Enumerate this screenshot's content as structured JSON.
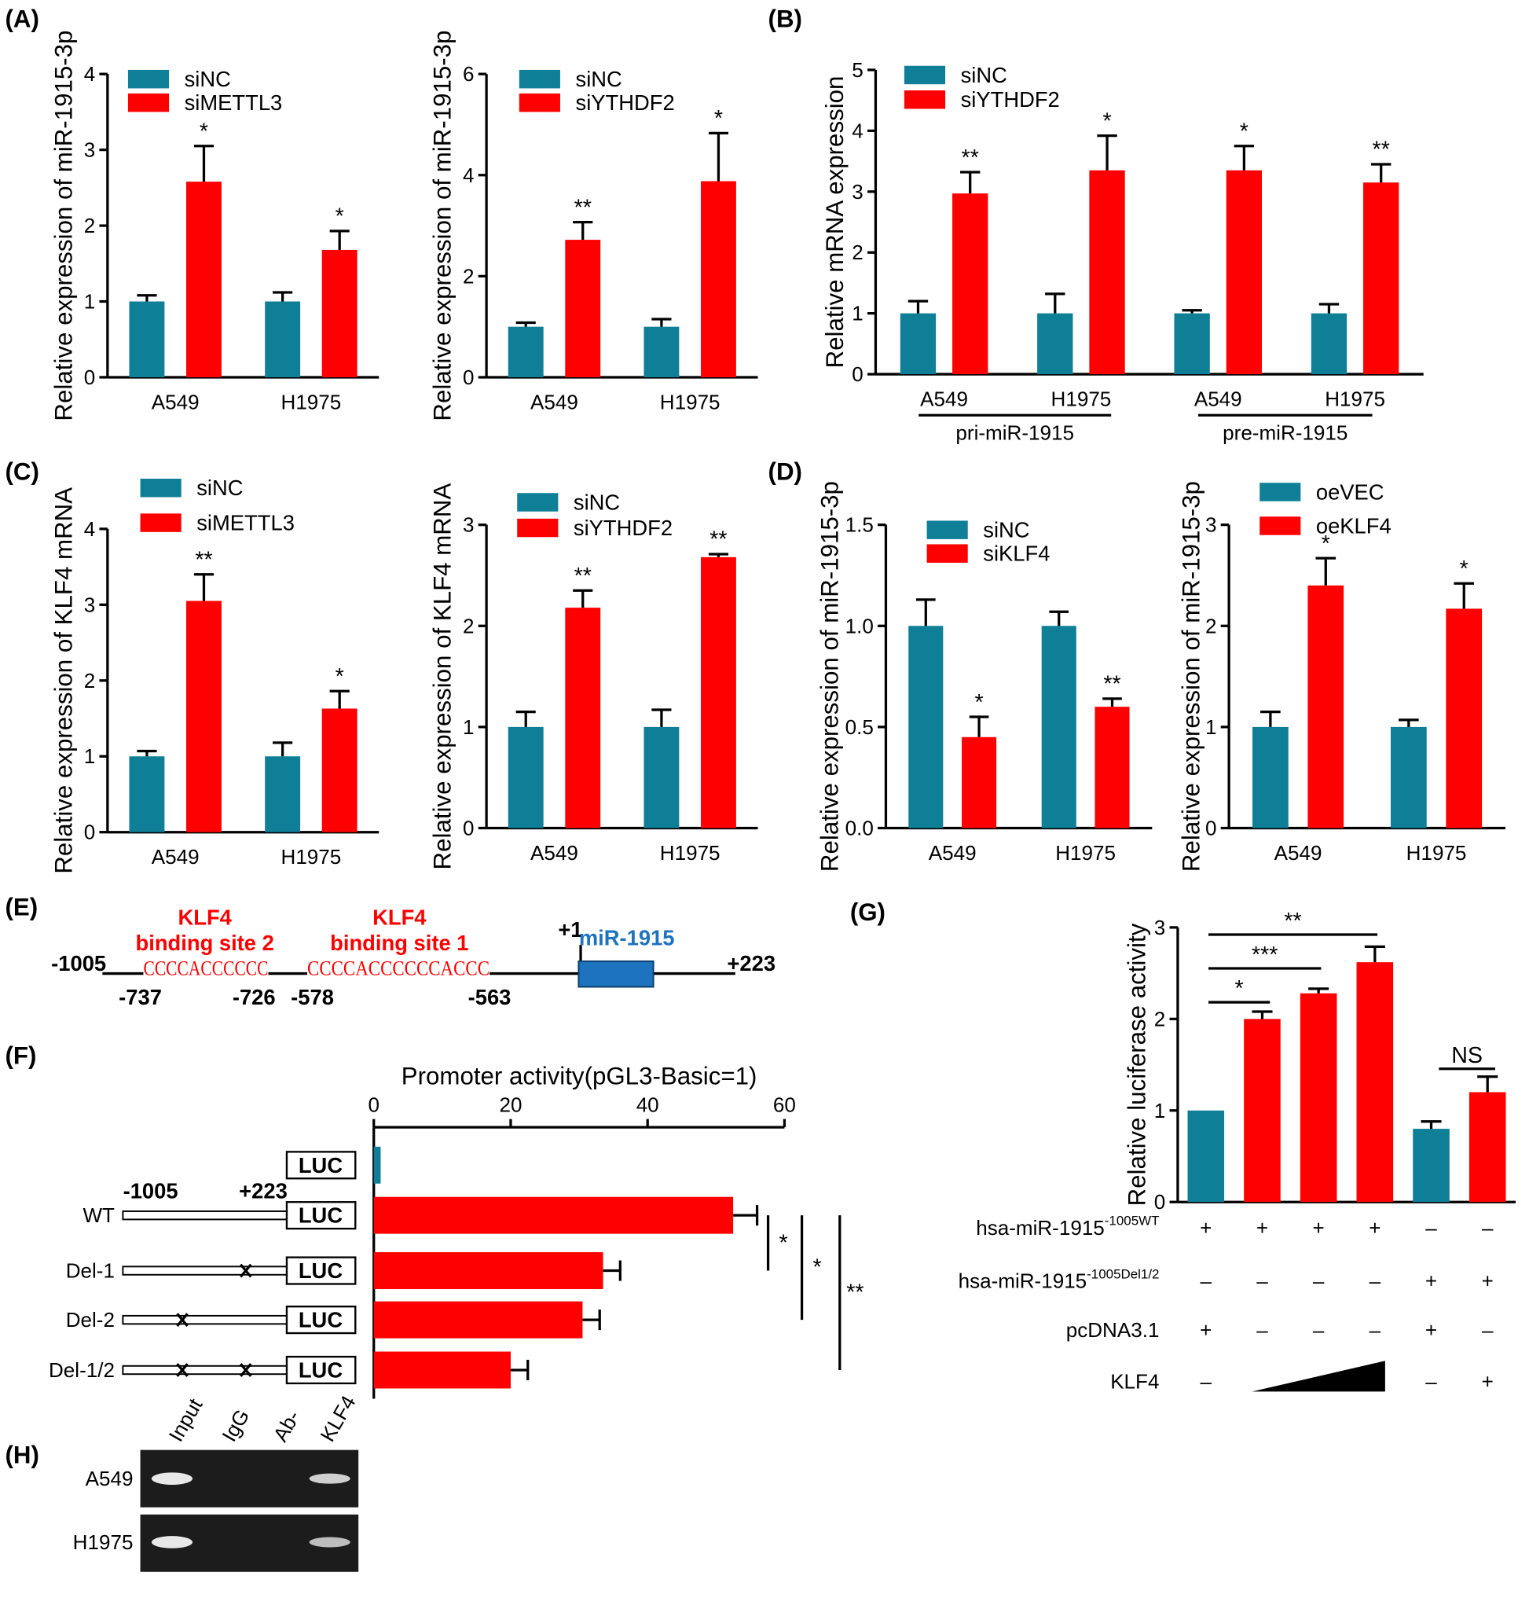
{
  "chart_data": [
    {
      "type": "bar",
      "panel": "(A)",
      "ylabel": "Relative expression of miR-1915-3p",
      "categories": [
        "A549",
        "H1975"
      ],
      "series": [
        {
          "name": "siNC",
          "color": "#0e7f97",
          "values": [
            1,
            1
          ],
          "errors": [
            0.08,
            0.12
          ]
        },
        {
          "name": "siMETTL3",
          "color": "#ff0000",
          "values": [
            2.58,
            1.68
          ],
          "errors": [
            0.47,
            0.25
          ],
          "significance": [
            "*",
            "*"
          ]
        }
      ],
      "ylim": [
        0,
        4
      ],
      "yticks": [
        0,
        1,
        2,
        3,
        4
      ]
    },
    {
      "type": "bar",
      "ylabel": "Relative expression of miR-1915-3p",
      "categories": [
        "A549",
        "H1975"
      ],
      "series": [
        {
          "name": "siNC",
          "color": "#0e7f97",
          "values": [
            1,
            1
          ],
          "errors": [
            0.08,
            0.15
          ]
        },
        {
          "name": "siYTHDF2",
          "color": "#ff0000",
          "values": [
            2.72,
            3.88
          ],
          "errors": [
            0.35,
            0.95
          ],
          "significance": [
            "**",
            "*"
          ]
        }
      ],
      "ylim": [
        0,
        6
      ],
      "yticks": [
        0,
        2,
        4,
        6
      ]
    },
    {
      "type": "bar",
      "panel": "(B)",
      "ylabel": "Relative mRNA expression",
      "categories": [
        "A549",
        "H1975",
        "A549",
        "H1975"
      ],
      "groups": [
        "pri-miR-1915",
        "pre-miR-1915"
      ],
      "series": [
        {
          "name": "siNC",
          "color": "#0e7f97",
          "values": [
            1,
            1,
            1,
            1
          ],
          "errors": [
            0.2,
            0.32,
            0.05,
            0.15
          ]
        },
        {
          "name": "siYTHDF2",
          "color": "#ff0000",
          "values": [
            2.97,
            3.35,
            3.35,
            3.15
          ],
          "errors": [
            0.35,
            0.57,
            0.4,
            0.3
          ],
          "significance": [
            "**",
            "*",
            "*",
            "**"
          ]
        }
      ],
      "ylim": [
        0,
        5
      ],
      "yticks": [
        0,
        1,
        2,
        3,
        4,
        5
      ]
    },
    {
      "type": "bar",
      "panel": "(C)",
      "ylabel": "Relative expression of KLF4 mRNA",
      "categories": [
        "A549",
        "H1975"
      ],
      "series": [
        {
          "name": "siNC",
          "color": "#0e7f97",
          "values": [
            1,
            1
          ],
          "errors": [
            0.07,
            0.18
          ]
        },
        {
          "name": "siMETTL3",
          "color": "#ff0000",
          "values": [
            3.05,
            1.63
          ],
          "errors": [
            0.35,
            0.23
          ],
          "significance": [
            "**",
            "*"
          ]
        }
      ],
      "ylim": [
        0,
        4
      ],
      "yticks": [
        0,
        1,
        2,
        3,
        4
      ]
    },
    {
      "type": "bar",
      "ylabel": "Relative expression of KLF4 mRNA",
      "categories": [
        "A549",
        "H1975"
      ],
      "series": [
        {
          "name": "siNC",
          "color": "#0e7f97",
          "values": [
            1,
            1
          ],
          "errors": [
            0.15,
            0.17
          ]
        },
        {
          "name": "siYTHDF2",
          "color": "#ff0000",
          "values": [
            2.18,
            2.68
          ],
          "errors": [
            0.17,
            0.03
          ],
          "significance": [
            "**",
            "**"
          ]
        }
      ],
      "ylim": [
        0,
        3
      ],
      "yticks": [
        0,
        1,
        2,
        3
      ]
    },
    {
      "type": "bar",
      "panel": "(D)",
      "ylabel": "Relative expression of miR-1915-3p",
      "categories": [
        "A549",
        "H1975"
      ],
      "series": [
        {
          "name": "siNC",
          "color": "#0e7f97",
          "values": [
            1,
            1
          ],
          "errors": [
            0.13,
            0.07
          ]
        },
        {
          "name": "siKLF4",
          "color": "#ff0000",
          "values": [
            0.45,
            0.6
          ],
          "errors": [
            0.1,
            0.04
          ],
          "significance": [
            "*",
            "**"
          ]
        }
      ],
      "ylim": [
        0,
        1.5
      ],
      "yticks": [
        {
          "value": 0,
          "label": "0.0"
        },
        {
          "value": 0.5,
          "label": "0.5"
        },
        {
          "value": 1,
          "label": "1.0"
        },
        {
          "value": 1.5,
          "label": "1.5"
        }
      ]
    },
    {
      "type": "bar",
      "ylabel": "Relative expression of miR-1915-3p",
      "categories": [
        "A549",
        "H1975"
      ],
      "series": [
        {
          "name": "oeVEC",
          "color": "#0e7f97",
          "values": [
            1,
            1
          ],
          "errors": [
            0.15,
            0.07
          ]
        },
        {
          "name": "oeKLF4",
          "color": "#ff0000",
          "values": [
            2.4,
            2.17
          ],
          "errors": [
            0.27,
            0.25
          ],
          "significance": [
            "*",
            "*"
          ]
        }
      ],
      "ylim": [
        0,
        3
      ],
      "yticks": [
        0,
        1,
        2,
        3
      ]
    },
    {
      "type": "hbar",
      "panel": "(F)",
      "title": "Promoter activity(pGL3-Basic=1)",
      "categories": [
        null,
        "WT",
        "Del-1",
        "Del-2",
        "Del-1/2"
      ],
      "values": [
        1,
        52.5,
        33.5,
        30.5,
        20
      ],
      "errors": [
        null,
        3.5,
        2.5,
        2.5,
        2.5
      ],
      "colors": [
        "#0e7f97",
        "#ff0000",
        "#ff0000",
        "#ff0000",
        "#ff0000"
      ],
      "xlim": [
        0,
        60
      ],
      "xticks": [
        0,
        20,
        40,
        60
      ],
      "construct_labels": {
        "start": "-1005",
        "end": "+223",
        "reporter": "LUC"
      },
      "comparisons": [
        "*",
        "*",
        "**"
      ]
    },
    {
      "type": "bar",
      "panel": "(G)",
      "ylabel": "Relative luciferase activity",
      "values": [
        1,
        2.0,
        2.28,
        2.62,
        0.8,
        1.2
      ],
      "errors": [
        null,
        0.08,
        0.05,
        0.17,
        0.08,
        0.17
      ],
      "colors": [
        "#0e7f97",
        "#ff0000",
        "#ff0000",
        "#ff0000",
        "#0e7f97",
        "#ff0000"
      ],
      "ylim": [
        0,
        3
      ],
      "yticks": [
        0,
        1,
        2,
        3
      ],
      "comparisons": [
        "*",
        "***",
        "**",
        "NS"
      ],
      "conditions": [
        {
          "name": "hsa-miR-1915",
          "superscript": "-1005WT",
          "levels": [
            "+",
            "+",
            "+",
            "+",
            "–",
            "–"
          ]
        },
        {
          "name": "hsa-miR-1915",
          "superscript": "-1005Del1/2",
          "levels": [
            "–",
            "–",
            "–",
            "–",
            "+",
            "+"
          ]
        },
        {
          "name": "pcDNA3.1",
          "levels": [
            "+",
            "–",
            "–",
            "–",
            "+",
            "–"
          ]
        },
        {
          "name": "KLF4",
          "levels": [
            "–",
            null,
            null,
            null,
            "–",
            "+"
          ]
        }
      ]
    }
  ],
  "diagram": {
    "panel": "(E)",
    "start": "-1005",
    "end": "+223",
    "tss": "+1",
    "gene": "miR-1915",
    "sites": [
      {
        "title": "KLF4",
        "subtitle": "binding site 2",
        "sequence": "CCCCACCCCCC",
        "from": "-737",
        "to": "-726"
      },
      {
        "title": "KLF4",
        "subtitle": "binding site 1",
        "sequence": "CCCCACCCCCCACCC",
        "from": "-578",
        "to": "-563"
      }
    ]
  },
  "gel": {
    "panel": "(H)",
    "lanes": [
      "Input",
      "IgG",
      "Ab-",
      "KLF4"
    ],
    "rows": [
      "A549",
      "H1975"
    ]
  }
}
